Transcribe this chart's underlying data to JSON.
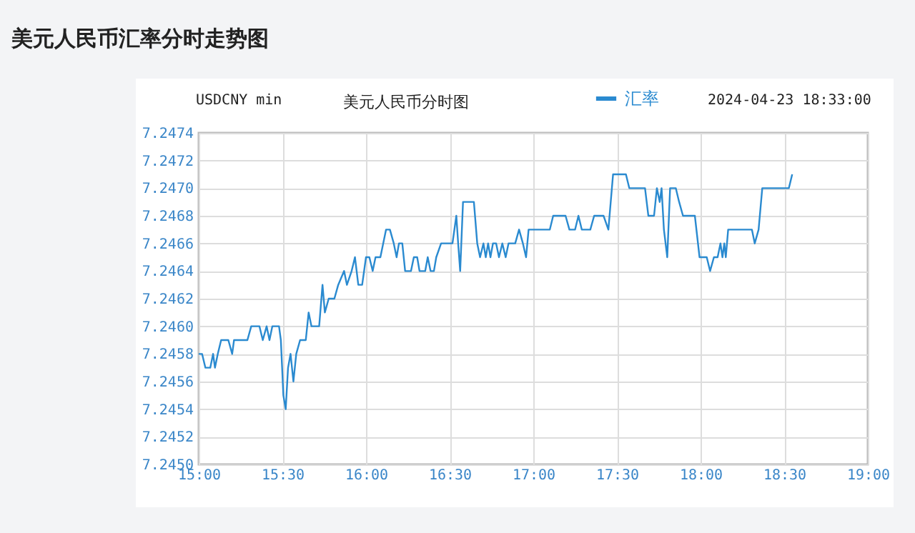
{
  "chart_data": {
    "type": "line",
    "title": "美元人民币汇率分时走势图",
    "subtitle": "美元人民币分时图",
    "annotations": [
      "USDCNY min",
      "2024-04-23 18:33:00"
    ],
    "x": [
      15.0,
      15.02,
      15.04,
      15.069,
      15.086,
      15.097,
      15.114,
      15.134,
      15.177,
      15.2,
      15.211,
      15.291,
      15.314,
      15.363,
      15.383,
      15.406,
      15.423,
      15.44,
      15.48,
      15.491,
      15.506,
      15.52,
      15.534,
      15.549,
      15.566,
      15.583,
      15.606,
      15.64,
      15.657,
      15.674,
      15.72,
      15.74,
      15.754,
      15.777,
      15.811,
      15.834,
      15.869,
      15.886,
      15.914,
      15.934,
      15.954,
      15.977,
      16.0,
      16.02,
      16.04,
      16.057,
      16.086,
      16.12,
      16.143,
      16.166,
      16.183,
      16.197,
      16.217,
      16.234,
      16.269,
      16.286,
      16.306,
      16.32,
      16.354,
      16.369,
      16.386,
      16.406,
      16.42,
      16.449,
      16.489,
      16.517,
      16.54,
      16.551,
      16.563,
      16.58,
      16.645,
      16.665,
      16.682,
      16.702,
      16.716,
      16.73,
      16.744,
      16.759,
      16.778,
      16.795,
      16.815,
      16.835,
      16.852,
      16.892,
      16.915,
      16.938,
      16.957,
      16.972,
      17.099,
      17.119,
      17.193,
      17.216,
      17.25,
      17.27,
      17.29,
      17.341,
      17.364,
      17.42,
      17.449,
      17.477,
      17.554,
      17.574,
      17.668,
      17.688,
      17.722,
      17.739,
      17.756,
      17.767,
      17.781,
      17.801,
      17.818,
      17.852,
      17.872,
      17.895,
      17.966,
      17.994,
      18.037,
      18.057,
      18.08,
      18.102,
      18.119,
      18.131,
      18.142,
      18.151,
      18.165,
      18.307,
      18.324,
      18.347,
      18.369,
      18.528,
      18.548
    ],
    "series": [
      {
        "name": "汇率",
        "color": "#2a8ad0",
        "values": [
          7.2458,
          7.2458,
          7.2457,
          7.2457,
          7.2458,
          7.2457,
          7.2458,
          7.2459,
          7.2459,
          7.2458,
          7.2459,
          7.2459,
          7.246,
          7.246,
          7.2459,
          7.246,
          7.2459,
          7.246,
          7.246,
          7.2459,
          7.2455,
          7.2454,
          7.2457,
          7.2458,
          7.2456,
          7.2458,
          7.2459,
          7.2459,
          7.2461,
          7.246,
          7.246,
          7.2463,
          7.2461,
          7.2462,
          7.2462,
          7.2463,
          7.2464,
          7.2463,
          7.2464,
          7.2465,
          7.2463,
          7.2463,
          7.2465,
          7.2465,
          7.2464,
          7.2465,
          7.2465,
          7.2467,
          7.2467,
          7.2466,
          7.2465,
          7.2466,
          7.2466,
          7.2464,
          7.2464,
          7.2465,
          7.2465,
          7.2464,
          7.2464,
          7.2465,
          7.2464,
          7.2464,
          7.2465,
          7.2466,
          7.2466,
          7.2466,
          7.2468,
          7.2466,
          7.2464,
          7.2469,
          7.2469,
          7.2466,
          7.2465,
          7.2466,
          7.2465,
          7.2466,
          7.2465,
          7.2466,
          7.2466,
          7.2465,
          7.2466,
          7.2465,
          7.2466,
          7.2466,
          7.2467,
          7.2466,
          7.2465,
          7.2467,
          7.2467,
          7.2468,
          7.2468,
          7.2467,
          7.2467,
          7.2468,
          7.2467,
          7.2467,
          7.2468,
          7.2468,
          7.2467,
          7.2471,
          7.2471,
          7.247,
          7.247,
          7.2468,
          7.2468,
          7.247,
          7.2469,
          7.247,
          7.2467,
          7.2465,
          7.247,
          7.247,
          7.2469,
          7.2468,
          7.2468,
          7.2465,
          7.2465,
          7.2464,
          7.2465,
          7.2465,
          7.2466,
          7.2465,
          7.2466,
          7.2465,
          7.2467,
          7.2467,
          7.2466,
          7.2467,
          7.247,
          7.247,
          7.2471
        ]
      }
    ],
    "xlim": [
      15,
      19
    ],
    "xticks": [
      {
        "value": 15,
        "label": "15:00"
      },
      {
        "value": 15.5,
        "label": "15:30"
      },
      {
        "value": 16,
        "label": "16:00"
      },
      {
        "value": 16.5,
        "label": "16:30"
      },
      {
        "value": 17,
        "label": "17:00"
      },
      {
        "value": 17.5,
        "label": "17:30"
      },
      {
        "value": 18,
        "label": "18:00"
      },
      {
        "value": 18.5,
        "label": "18:30"
      },
      {
        "value": 19,
        "label": "19:00"
      }
    ],
    "ylim": [
      7.245,
      7.2474
    ],
    "yticks": [
      {
        "value": 7.245,
        "label": "7.2450"
      },
      {
        "value": 7.2452,
        "label": "7.2452"
      },
      {
        "value": 7.2454,
        "label": "7.2454"
      },
      {
        "value": 7.2456,
        "label": "7.2456"
      },
      {
        "value": 7.2458,
        "label": "7.2458"
      },
      {
        "value": 7.246,
        "label": "7.2460"
      },
      {
        "value": 7.2462,
        "label": "7.2462"
      },
      {
        "value": 7.2464,
        "label": "7.2464"
      },
      {
        "value": 7.2466,
        "label": "7.2466"
      },
      {
        "value": 7.2468,
        "label": "7.2468"
      },
      {
        "value": 7.247,
        "label": "7.2470"
      },
      {
        "value": 7.2472,
        "label": "7.2472"
      },
      {
        "value": 7.2474,
        "label": "7.2474"
      }
    ],
    "grid": true,
    "legend": "top",
    "marker": "none",
    "line_style": "solid"
  }
}
